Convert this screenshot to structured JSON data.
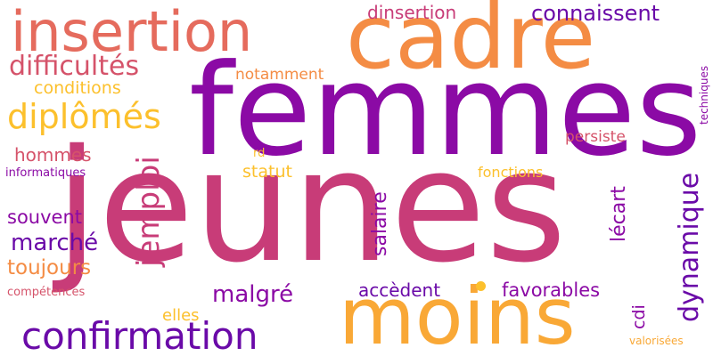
{
  "colors": {
    "background": "#ffffff",
    "dark_purple": "#6a0aa8",
    "purple": "#8b0aa5",
    "magenta": "#c83c78",
    "rose": "#d5536a",
    "coral": "#e56b5d",
    "orange": "#f48c44",
    "amber": "#f9a836",
    "gold": "#fcc02c",
    "yellow": "#f0f921"
  },
  "words": [
    {
      "text": "jeunes",
      "color": "magenta"
    },
    {
      "text": "femmes",
      "color": "purple"
    },
    {
      "text": "cadre",
      "color": "orange"
    },
    {
      "text": "moins",
      "color": "amber"
    },
    {
      "text": "insertion",
      "color": "coral"
    },
    {
      "text": "confirmation",
      "color": "dark_purple"
    },
    {
      "text": "diplômés",
      "color": "gold"
    },
    {
      "text": "jemploi",
      "color": "magenta"
    },
    {
      "text": "dynamique",
      "color": "dark_purple"
    },
    {
      "text": "difficultés",
      "color": "rose"
    },
    {
      "text": "connaissent",
      "color": "dark_purple"
    },
    {
      "text": "dinsertion",
      "color": "magenta"
    },
    {
      "text": "marché",
      "color": "dark_purple"
    },
    {
      "text": "malgré",
      "color": "purple"
    },
    {
      "text": "favorables",
      "color": "purple"
    },
    {
      "text": "accèdent",
      "color": "dark_purple"
    },
    {
      "text": "conditions",
      "color": "gold"
    },
    {
      "text": "salaire",
      "color": "purple"
    },
    {
      "text": "lécart",
      "color": "purple"
    },
    {
      "text": "toujours",
      "color": "orange"
    },
    {
      "text": "souvent",
      "color": "purple"
    },
    {
      "text": "hommes",
      "color": "rose"
    },
    {
      "text": "statut",
      "color": "gold"
    },
    {
      "text": "notamment",
      "color": "orange"
    },
    {
      "text": "persiste",
      "color": "rose"
    },
    {
      "text": "fonctions",
      "color": "gold"
    },
    {
      "text": "elles",
      "color": "gold"
    },
    {
      "text": "cdi",
      "color": "purple"
    },
    {
      "text": "informatiques",
      "color": "purple"
    },
    {
      "text": "compétences",
      "color": "rose"
    },
    {
      "text": "techniques",
      "color": "purple"
    },
    {
      "text": "valorisées",
      "color": "amber"
    },
    {
      "text": "rd",
      "color": "gold"
    }
  ]
}
